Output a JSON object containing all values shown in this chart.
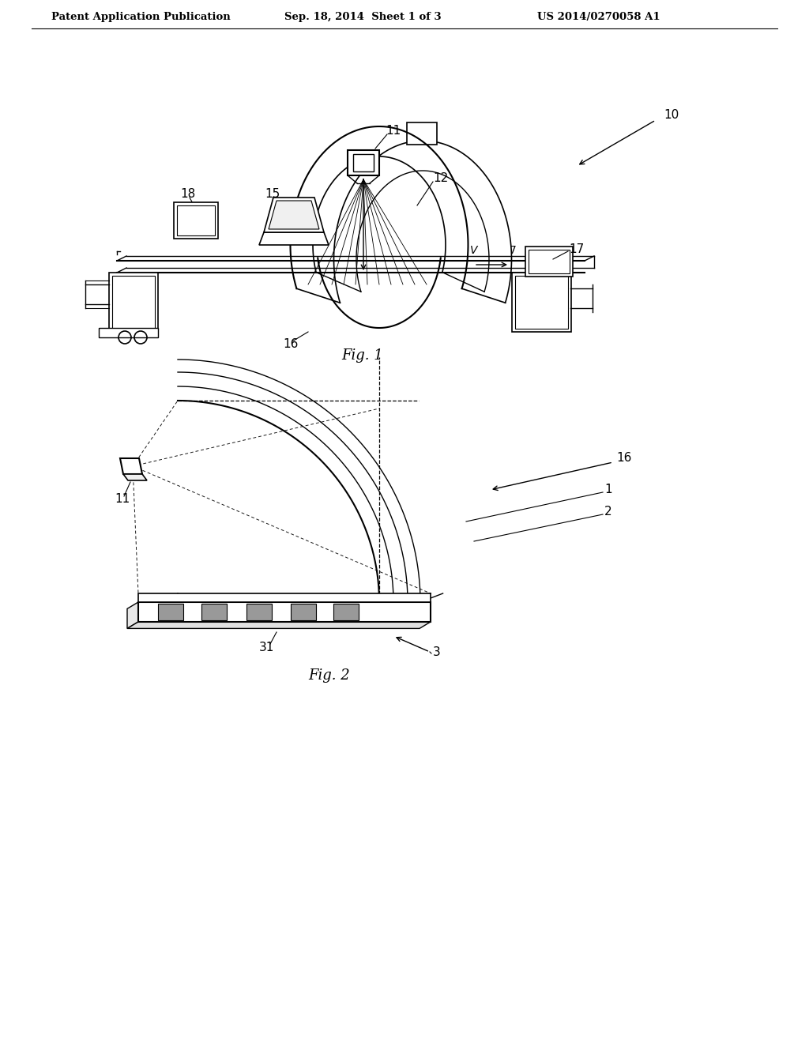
{
  "bg_color": "#ffffff",
  "header_text": "Patent Application Publication",
  "header_date": "Sep. 18, 2014  Sheet 1 of 3",
  "header_patent": "US 2014/0270058 A1",
  "fig1_label": "Fig. 1",
  "fig2_label": "Fig. 2",
  "line_color": "#000000",
  "gray_fill": "#aaaaaa"
}
